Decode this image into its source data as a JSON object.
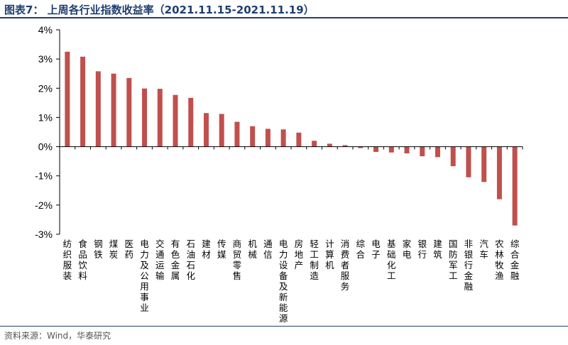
{
  "header": {
    "title": "图表7：  上周各行业指数收益率（2021.11.15-2021.11.19）"
  },
  "footer": {
    "source": "资料来源：Wind，华泰研究"
  },
  "colors": {
    "title": "#1f3f6f",
    "bar": "#c0504d",
    "axis": "#000000"
  },
  "chart_data": {
    "type": "bar",
    "title": "上周各行业指数收益率（2021.11.15-2021.11.19）",
    "xlabel": "",
    "ylabel": "",
    "ylim": [
      -3,
      4
    ],
    "yticks": [
      -3,
      -2,
      -1,
      0,
      1,
      2,
      3,
      4
    ],
    "ytick_labels": [
      "-3%",
      "-2%",
      "-1%",
      "0%",
      "1%",
      "2%",
      "3%",
      "4%"
    ],
    "grid": false,
    "legend": "none",
    "categories": [
      "纺织服装",
      "食品饮料",
      "钢铁",
      "煤炭",
      "医药",
      "电力及公用事业",
      "交通运输",
      "有色金属",
      "石油石化",
      "建材",
      "传媒",
      "商贸零售",
      "机械",
      "通信",
      "电力设备及新能源",
      "房地产",
      "轻工制造",
      "计算机",
      "消费者服务",
      "综合",
      "电子",
      "基础化工",
      "家电",
      "银行",
      "建筑",
      "国防军工",
      "非银行金融",
      "汽车",
      "农林牧渔",
      "综合金融"
    ],
    "values": [
      3.25,
      3.08,
      2.58,
      2.5,
      2.35,
      1.99,
      1.98,
      1.77,
      1.67,
      1.15,
      1.12,
      0.85,
      0.7,
      0.61,
      0.59,
      0.48,
      0.2,
      0.1,
      0.05,
      -0.05,
      -0.18,
      -0.2,
      -0.23,
      -0.33,
      -0.36,
      -0.67,
      -1.05,
      -1.21,
      -1.8,
      -2.7
    ]
  }
}
